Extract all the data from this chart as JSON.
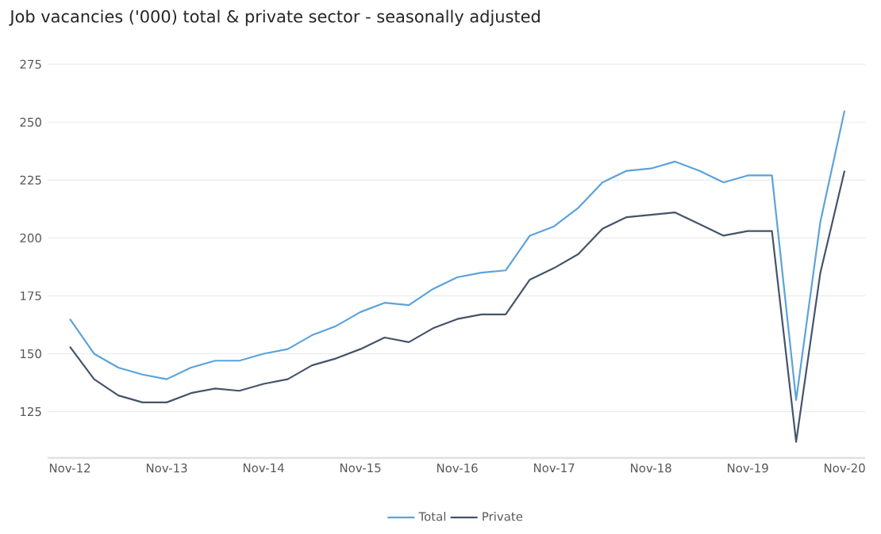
{
  "chart_data": {
    "type": "line",
    "title": "Job vacancies ('000) total & private sector - seasonally adjusted",
    "categories": [
      "Nov-12",
      null,
      null,
      null,
      "Nov-13",
      null,
      null,
      null,
      "Nov-14",
      null,
      null,
      null,
      "Nov-15",
      null,
      null,
      null,
      "Nov-16",
      null,
      null,
      null,
      "Nov-17",
      null,
      null,
      null,
      "Nov-18",
      null,
      null,
      null,
      "Nov-19",
      null,
      null,
      null,
      "Nov-20"
    ],
    "series": [
      {
        "name": "Total",
        "color": "#5ba3d9",
        "values": [
          165,
          150,
          144,
          141,
          139,
          144,
          147,
          147,
          150,
          152,
          158,
          162,
          168,
          172,
          171,
          178,
          183,
          185,
          186,
          201,
          205,
          213,
          224,
          229,
          230,
          233,
          229,
          224,
          227,
          227,
          130,
          207,
          255
        ]
      },
      {
        "name": "Private",
        "color": "#44546a",
        "values": [
          153,
          139,
          132,
          129,
          129,
          133,
          135,
          134,
          137,
          139,
          145,
          148,
          152,
          157,
          155,
          161,
          165,
          167,
          167,
          182,
          187,
          193,
          204,
          209,
          210,
          211,
          206,
          201,
          203,
          203,
          112,
          185,
          229
        ]
      }
    ],
    "ylim": [
      105,
      275
    ],
    "yticks": [
      125,
      150,
      175,
      200,
      225,
      250,
      275
    ],
    "grid": "y",
    "legend": "bottom",
    "marker": "none",
    "line_style": "solid"
  }
}
